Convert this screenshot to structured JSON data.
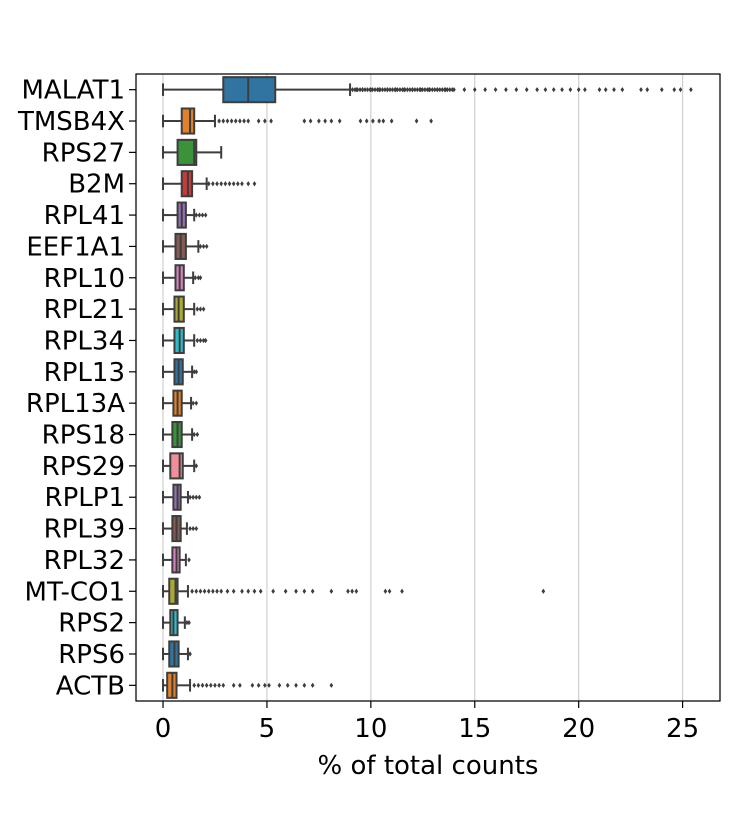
{
  "chart_data": {
    "type": "box",
    "title": "",
    "xlabel": "% of total counts",
    "ylabel": "",
    "xlim": [
      -1.3,
      26.8
    ],
    "xticks": [
      0,
      5,
      10,
      15,
      20,
      25
    ],
    "grid": "vertical",
    "legend": "none",
    "categories": [
      "MALAT1",
      "TMSB4X",
      "RPS27",
      "B2M",
      "RPL41",
      "EEF1A1",
      "RPL10",
      "RPL21",
      "RPL34",
      "RPL13",
      "RPL13A",
      "RPS18",
      "RPS29",
      "RPLP1",
      "RPL39",
      "RPL32",
      "MT-CO1",
      "RPS2",
      "RPS6",
      "ACTB"
    ],
    "series": [
      {
        "name": "MALAT1",
        "color": "#3274a1",
        "min": 0.0,
        "q1": 2.9,
        "median": 4.1,
        "q3": 5.4,
        "whisker_high": 9.0,
        "outliers_range": [
          9.0,
          25.4
        ],
        "outliers": [
          9.3,
          9.6,
          10.0,
          10.4,
          10.8,
          11.2,
          11.6,
          12.0,
          12.4,
          12.8,
          13.2,
          13.6,
          14.0,
          14.5,
          15.0,
          15.5,
          16.0,
          16.5,
          17.0,
          17.5,
          18.0,
          18.4,
          18.8,
          19.2,
          19.6,
          20.0,
          20.3,
          21.0,
          21.3,
          21.7,
          22.1,
          23.0,
          23.3,
          24.0,
          24.6,
          24.9,
          25.4
        ]
      },
      {
        "name": "TMSB4X",
        "color": "#e1812c",
        "min": 0.0,
        "q1": 0.9,
        "median": 1.3,
        "q3": 1.5,
        "whisker_high": 2.5,
        "outliers": [
          2.7,
          2.9,
          3.1,
          3.3,
          3.5,
          3.7,
          3.9,
          4.1,
          4.6,
          4.9,
          5.2,
          6.8,
          7.1,
          7.5,
          7.8,
          8.1,
          8.5,
          9.5,
          9.8,
          10.1,
          10.4,
          10.6,
          11.0,
          12.2,
          12.9
        ]
      },
      {
        "name": "RPS27",
        "color": "#3a923a",
        "min": 0.0,
        "q1": 0.7,
        "median": 1.5,
        "q3": 1.6,
        "whisker_high": 2.8,
        "outliers": []
      },
      {
        "name": "B2M",
        "color": "#c03d3e",
        "min": 0.0,
        "q1": 0.9,
        "median": 1.2,
        "q3": 1.4,
        "whisker_high": 2.1,
        "outliers": [
          2.2,
          2.4,
          2.6,
          2.8,
          3.0,
          3.2,
          3.4,
          3.6,
          3.8,
          4.1,
          4.4
        ]
      },
      {
        "name": "RPL41",
        "color": "#9372b2",
        "min": 0.0,
        "q1": 0.7,
        "median": 0.9,
        "q3": 1.1,
        "whisker_high": 1.5,
        "outliers": [
          1.6,
          1.75,
          1.9,
          2.05
        ]
      },
      {
        "name": "EEF1A1",
        "color": "#845b53",
        "min": 0.0,
        "q1": 0.6,
        "median": 0.85,
        "q3": 1.1,
        "whisker_high": 1.7,
        "outliers": [
          1.8,
          1.95,
          2.1
        ]
      },
      {
        "name": "RPL10",
        "color": "#d684bd",
        "min": 0.0,
        "q1": 0.6,
        "median": 0.8,
        "q3": 1.0,
        "whisker_high": 1.45,
        "outliers": [
          1.55,
          1.7,
          1.8
        ]
      },
      {
        "name": "RPL21",
        "color": "#a9aa35",
        "min": 0.0,
        "q1": 0.55,
        "median": 0.75,
        "q3": 1.0,
        "whisker_high": 1.5,
        "outliers": [
          1.65,
          1.8,
          1.95
        ]
      },
      {
        "name": "RPL34",
        "color": "#2fbdcd",
        "min": 0.0,
        "q1": 0.55,
        "median": 0.8,
        "q3": 1.0,
        "whisker_high": 1.5,
        "outliers": [
          1.65,
          1.8,
          1.95,
          2.05
        ]
      },
      {
        "name": "RPL13",
        "color": "#3274a1",
        "min": 0.0,
        "q1": 0.55,
        "median": 0.75,
        "q3": 0.95,
        "whisker_high": 1.4,
        "outliers": [
          1.5,
          1.6
        ]
      },
      {
        "name": "RPL13A",
        "color": "#e1812c",
        "min": 0.0,
        "q1": 0.5,
        "median": 0.7,
        "q3": 0.9,
        "whisker_high": 1.35,
        "outliers": [
          1.45,
          1.6
        ]
      },
      {
        "name": "RPS18",
        "color": "#3a923a",
        "min": 0.0,
        "q1": 0.45,
        "median": 0.7,
        "q3": 0.9,
        "whisker_high": 1.4,
        "outliers": [
          1.5,
          1.65
        ]
      },
      {
        "name": "RPS29",
        "color": "#f08f9a",
        "min": 0.0,
        "q1": 0.35,
        "median": 0.8,
        "q3": 0.95,
        "whisker_high": 1.5,
        "outliers": [
          1.6
        ]
      },
      {
        "name": "RPLP1",
        "color": "#9372b2",
        "min": 0.0,
        "q1": 0.5,
        "median": 0.7,
        "q3": 0.85,
        "whisker_high": 1.2,
        "outliers": [
          1.3,
          1.45,
          1.6,
          1.75
        ]
      },
      {
        "name": "RPL39",
        "color": "#845b53",
        "min": 0.0,
        "q1": 0.45,
        "median": 0.65,
        "q3": 0.85,
        "whisker_high": 1.15,
        "outliers": [
          1.3,
          1.45,
          1.6
        ]
      },
      {
        "name": "RPL32",
        "color": "#d684bd",
        "min": 0.0,
        "q1": 0.45,
        "median": 0.65,
        "q3": 0.8,
        "whisker_high": 1.1,
        "outliers": [
          1.25
        ]
      },
      {
        "name": "MT-CO1",
        "color": "#a9aa35",
        "min": 0.0,
        "q1": 0.3,
        "median": 0.6,
        "q3": 0.7,
        "whisker_high": 1.2,
        "outliers": [
          1.4,
          1.6,
          1.8,
          2.0,
          2.2,
          2.4,
          2.6,
          2.8,
          3.1,
          3.4,
          3.8,
          4.1,
          4.4,
          4.7,
          5.3,
          5.9,
          6.4,
          6.8,
          7.2,
          8.1,
          8.9,
          9.1,
          9.3,
          10.7,
          10.9,
          11.5,
          18.3
        ]
      },
      {
        "name": "RPS2",
        "color": "#2fbdcd",
        "min": 0.0,
        "q1": 0.35,
        "median": 0.5,
        "q3": 0.7,
        "whisker_high": 1.05,
        "outliers": [
          1.15,
          1.25
        ]
      },
      {
        "name": "RPS6",
        "color": "#3274a1",
        "min": 0.0,
        "q1": 0.3,
        "median": 0.55,
        "q3": 0.75,
        "whisker_high": 1.2,
        "outliers": [
          1.3
        ]
      },
      {
        "name": "ACTB",
        "color": "#e1812c",
        "min": 0.0,
        "q1": 0.2,
        "median": 0.45,
        "q3": 0.65,
        "whisker_high": 1.3,
        "outliers": [
          1.5,
          1.7,
          1.9,
          2.1,
          2.3,
          2.5,
          2.7,
          2.9,
          3.4,
          3.7,
          4.3,
          4.6,
          4.9,
          5.1,
          5.6,
          6.0,
          6.4,
          6.8,
          7.2,
          8.1
        ]
      }
    ]
  }
}
